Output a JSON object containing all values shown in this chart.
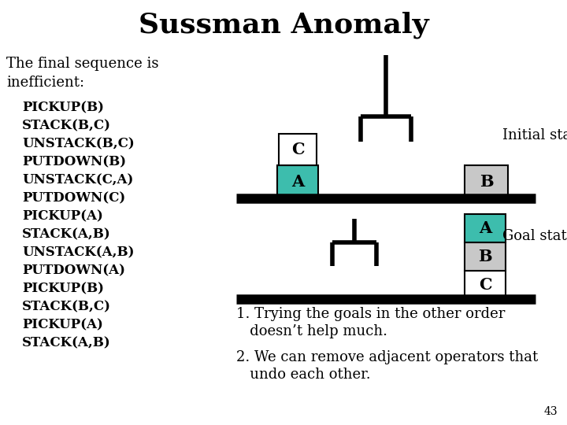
{
  "title": "Sussman Anomaly",
  "title_fontsize": 26,
  "title_fontweight": "bold",
  "bg_color": "#ffffff",
  "subtitle": "The final sequence is\ninefficient:",
  "subtitle_fontsize": 13,
  "steps": [
    "PICKUP(B)",
    "STACK(B,C)",
    "UNSTACK(B,C)",
    "PUTDOWN(B)",
    "UNSTACK(C,A)",
    "PUTDOWN(C)",
    "PICKUP(A)",
    "STACK(A,B)",
    "UNSTACK(A,B)",
    "PUTDOWN(A)",
    "PICKUP(B)",
    "STACK(B,C)",
    "PICKUP(A)",
    "STACK(A,B)"
  ],
  "steps_fontsize": 12,
  "steps_fontweight": "bold",
  "note1_line1": "1. Trying the goals in the other order",
  "note1_line2": "   doesn’t help much.",
  "note2_line1": "2. We can remove adjacent operators that",
  "note2_line2": "   undo each other.",
  "notes_fontsize": 13,
  "page_num": "43",
  "initial_label": "Initial state",
  "goal_label": "Goal state",
  "block_C_color_initial": "white",
  "block_A_color_initial": "#3dbdad",
  "block_B_color_initial": "#c8c8c8",
  "block_A_color_goal": "#3dbdad",
  "block_B_color_goal": "#c8c8c8",
  "block_C_color_goal": "white",
  "arm_color": "black",
  "table_color": "black",
  "table_lw": 9
}
